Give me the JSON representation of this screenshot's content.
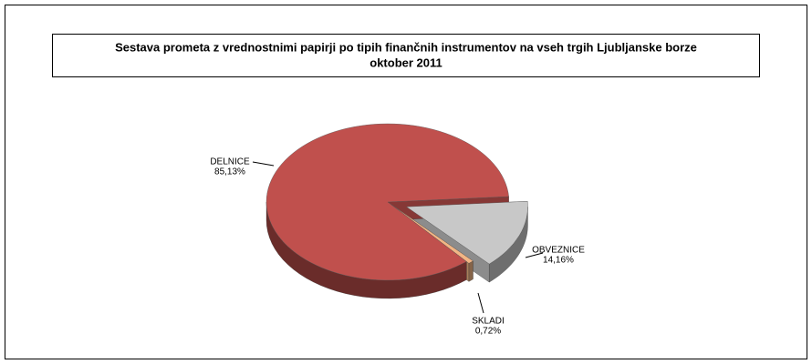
{
  "chart_data": {
    "type": "pie",
    "title": "Sestava prometa z vrednostnimi papirji po tipih finančnih instrumentov na vseh trgih Ljubljanske borze",
    "subtitle": "oktober 2011",
    "categories": [
      "OBVEZNICE",
      "SKLADI",
      "DELNICE"
    ],
    "values": [
      14.16,
      0.72,
      85.13
    ],
    "value_labels": [
      "14,16%",
      "0,72%",
      "85,13%"
    ],
    "colors": [
      "#c8c8c8",
      "#f2b584",
      "#c0504d"
    ]
  }
}
